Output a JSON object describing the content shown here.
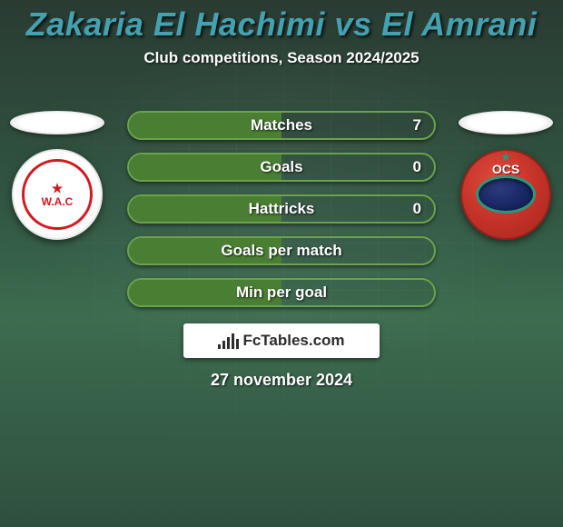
{
  "title": {
    "text": "Zakaria El Hachimi vs El Amrani",
    "color": "#43a1b0"
  },
  "subtitle": {
    "text": "Club competitions, Season 2024/2025",
    "color": "#ffffff"
  },
  "date": "27 november 2024",
  "brand": "FcTables.com",
  "accent": {
    "left": {
      "stroke": "#6aa34b",
      "fill": "#4a7f33",
      "club_tag": "W.A.C"
    },
    "right": {
      "stroke": "#7fccc8",
      "club_tag": "OCS"
    }
  },
  "stats": [
    {
      "label": "Matches",
      "value": "7"
    },
    {
      "label": "Goals",
      "value": "0"
    },
    {
      "label": "Hattricks",
      "value": "0"
    },
    {
      "label": "Goals per match",
      "value": ""
    },
    {
      "label": "Min per goal",
      "value": ""
    }
  ]
}
